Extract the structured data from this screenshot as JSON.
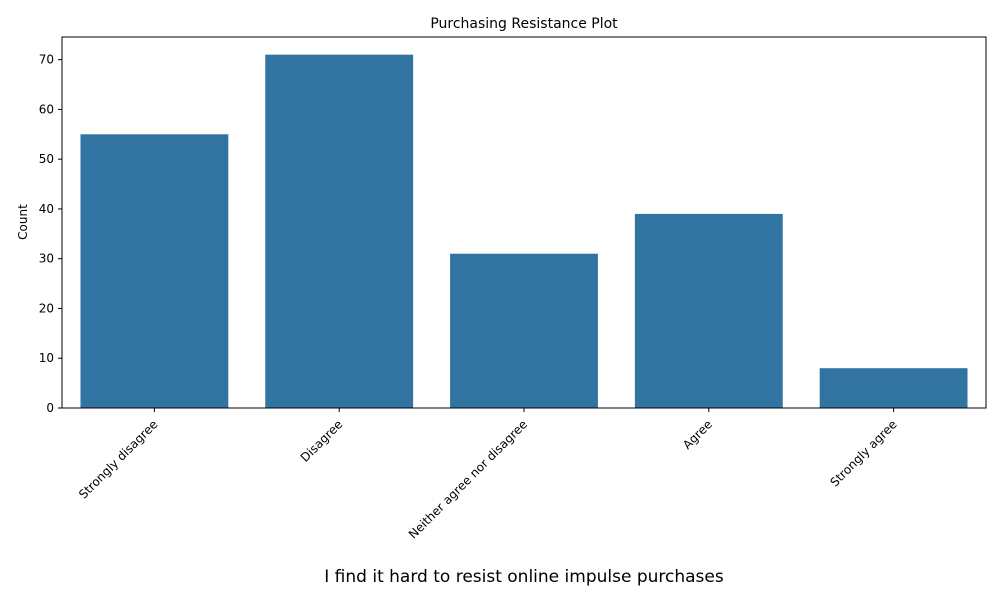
{
  "chart_data": {
    "type": "bar",
    "title": "Purchasing Resistance Plot",
    "xlabel": "I find it hard to resist online impulse purchases",
    "ylabel": "Count",
    "categories": [
      "Strongly disagree",
      "Disagree",
      "Neither agree nor disagree",
      "Agree",
      "Strongly agree"
    ],
    "values": [
      55,
      71,
      31,
      39,
      8
    ],
    "yticks": [
      0,
      10,
      20,
      30,
      40,
      50,
      60,
      70
    ],
    "ylim": [
      0,
      74.55
    ],
    "grid": false,
    "bar_color": "#3274a1"
  }
}
